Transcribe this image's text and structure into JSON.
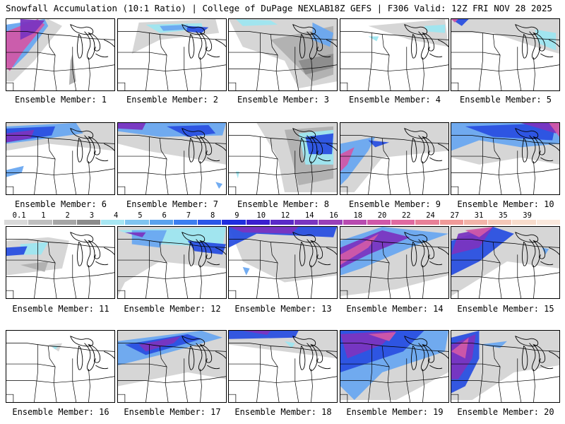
{
  "header": {
    "title_left": "Snowfall Accumulation (10:1 Ratio) | College of DuPage NEXLAB",
    "title_right": "18Z GEFS | F306 Valid: 12Z FRI NOV 28 2025"
  },
  "legend": {
    "ticks": [
      "0.1",
      "1",
      "2",
      "3",
      "4",
      "5",
      "6",
      "7",
      "8",
      "9",
      "10",
      "12",
      "14",
      "16",
      "18",
      "20",
      "22",
      "24",
      "27",
      "31",
      "35",
      "39"
    ],
    "colors": [
      "#d9d9d9",
      "#bfbfbf",
      "#a6a6a6",
      "#8c8c8c",
      "#a6e6f2",
      "#7fc4f0",
      "#5aa2ee",
      "#3c7ef0",
      "#2a55e8",
      "#1f2ee0",
      "#3a1fd0",
      "#5a2ac8",
      "#7a35c0",
      "#9a40b8",
      "#b84ab0",
      "#d058a8",
      "#e06aa0",
      "#e88098",
      "#f09a98",
      "#f2b4a8",
      "#f5c8b8",
      "#f8dccc",
      "#fae8dc"
    ]
  },
  "members": [
    {
      "label": "Ensemble Member: 1"
    },
    {
      "label": "Ensemble Member: 2"
    },
    {
      "label": "Ensemble Member: 3"
    },
    {
      "label": "Ensemble Member: 4"
    },
    {
      "label": "Ensemble Member: 5"
    },
    {
      "label": "Ensemble Member: 6"
    },
    {
      "label": "Ensemble Member: 7"
    },
    {
      "label": "Ensemble Member: 8"
    },
    {
      "label": "Ensemble Member: 9"
    },
    {
      "label": "Ensemble Member: 10"
    },
    {
      "label": "Ensemble Member: 11"
    },
    {
      "label": "Ensemble Member: 12"
    },
    {
      "label": "Ensemble Member: 13"
    },
    {
      "label": "Ensemble Member: 14"
    },
    {
      "label": "Ensemble Member: 15"
    },
    {
      "label": "Ensemble Member: 16"
    },
    {
      "label": "Ensemble Member: 17"
    },
    {
      "label": "Ensemble Member: 18"
    },
    {
      "label": "Ensemble Member: 19"
    },
    {
      "label": "Ensemble Member: 20"
    }
  ]
}
